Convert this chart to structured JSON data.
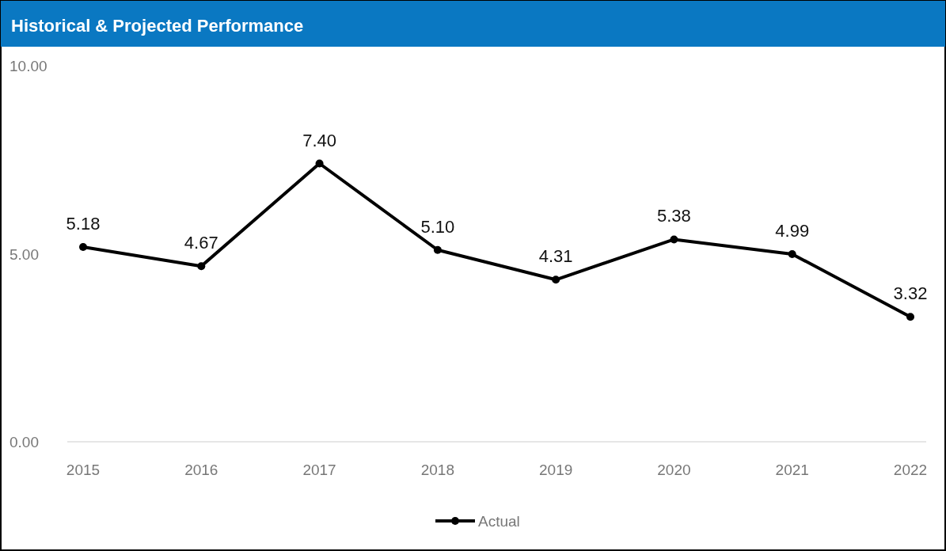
{
  "chart_data": {
    "type": "line",
    "title": "Historical & Projected Performance",
    "categories": [
      "2015",
      "2016",
      "2017",
      "2018",
      "2019",
      "2020",
      "2021",
      "2022"
    ],
    "series": [
      {
        "name": "Actual",
        "color": "#000000",
        "values": [
          5.18,
          4.67,
          7.4,
          5.1,
          4.31,
          5.38,
          4.99,
          3.32
        ],
        "value_labels": [
          "5.18",
          "4.67",
          "7.40",
          "5.10",
          "4.31",
          "5.38",
          "4.99",
          "3.32"
        ]
      }
    ],
    "ylim": [
      0,
      10
    ],
    "yticks": [
      {
        "value": 0,
        "label": "0.00"
      },
      {
        "value": 5,
        "label": "5.00"
      },
      {
        "value": 10,
        "label": "10.00"
      }
    ],
    "marker": "circle",
    "line_style": "solid",
    "legend": "bottom"
  }
}
